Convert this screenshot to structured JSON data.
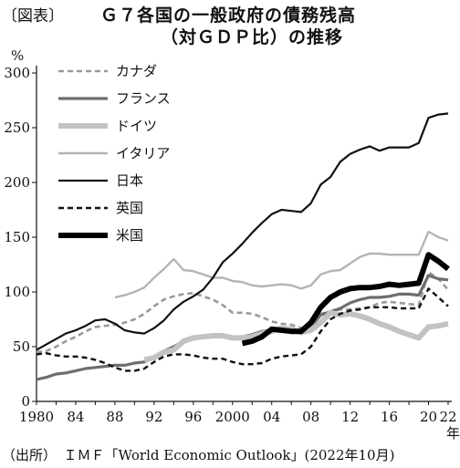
{
  "figure_label": "〔図表〕",
  "title_line1": "Ｇ７各国の一般政府の債務残高",
  "title_line2": "（対ＧＤＰ比）の推移",
  "source": "（出所）　ＩＭＦ「World Economic Outlook」(2022年10月)",
  "chart_data": {
    "type": "line",
    "title": "Ｇ７各国の一般政府の債務残高（対ＧＤＰ比）の推移",
    "ylabel": "%",
    "xlabel": "年",
    "ylim": [
      0,
      300
    ],
    "xlim": [
      1980,
      2022
    ],
    "yticks": [
      0,
      50,
      100,
      150,
      200,
      250,
      300
    ],
    "xtick_values": [
      1980,
      1984,
      1988,
      1992,
      1996,
      2000,
      2004,
      2008,
      2012,
      2016,
      2020,
      2022
    ],
    "xtick_labels": [
      "1980",
      "84",
      "88",
      "92",
      "96",
      "2000",
      "04",
      "08",
      "12",
      "16",
      "20",
      "22"
    ],
    "grid": false,
    "legend_position": "top-left",
    "series": [
      {
        "name": "カナダ",
        "style": "dashed",
        "color": "#9a9a9a",
        "x": [
          1980,
          1981,
          1982,
          1983,
          1984,
          1985,
          1986,
          1987,
          1988,
          1989,
          1990,
          1991,
          1992,
          1993,
          1994,
          1995,
          1996,
          1997,
          1998,
          1999,
          2000,
          2001,
          2002,
          2003,
          2004,
          2005,
          2006,
          2007,
          2008,
          2009,
          2010,
          2011,
          2012,
          2013,
          2014,
          2015,
          2016,
          2017,
          2018,
          2019,
          2020,
          2021,
          2022
        ],
        "y": [
          45,
          46,
          50,
          55,
          59,
          64,
          68,
          69,
          70,
          72,
          75,
          80,
          87,
          93,
          96,
          98,
          99,
          96,
          93,
          88,
          81,
          81,
          80,
          77,
          73,
          71,
          70,
          67,
          68,
          80,
          82,
          84,
          84,
          85,
          86,
          90,
          91,
          90,
          89,
          88,
          118,
          112,
          102
        ]
      },
      {
        "name": "フランス",
        "style": "solid",
        "color": "#6e6e6e",
        "x": [
          1980,
          1981,
          1982,
          1983,
          1984,
          1985,
          1986,
          1987,
          1988,
          1989,
          1990,
          1991,
          1992,
          1993,
          1994,
          1995,
          1996,
          1997,
          1998,
          1999,
          2000,
          2001,
          2002,
          2003,
          2004,
          2005,
          2006,
          2007,
          2008,
          2009,
          2010,
          2011,
          2012,
          2013,
          2014,
          2015,
          2016,
          2017,
          2018,
          2019,
          2020,
          2021,
          2022
        ],
        "y": [
          20,
          22,
          25,
          26,
          28,
          30,
          31,
          32,
          33,
          33,
          35,
          36,
          40,
          46,
          50,
          55,
          58,
          60,
          61,
          60,
          59,
          59,
          61,
          64,
          65,
          67,
          64,
          64,
          68,
          79,
          82,
          85,
          90,
          93,
          95,
          95,
          96,
          98,
          98,
          97,
          115,
          112,
          111
        ]
      },
      {
        "name": "ドイツ",
        "style": "solid",
        "color": "#c2c2c2",
        "x": [
          1991,
          1992,
          1993,
          1994,
          1995,
          1996,
          1997,
          1998,
          1999,
          2000,
          2001,
          2002,
          2003,
          2004,
          2005,
          2006,
          2007,
          2008,
          2009,
          2010,
          2011,
          2012,
          2013,
          2014,
          2015,
          2016,
          2017,
          2018,
          2019,
          2020,
          2021,
          2022
        ],
        "y": [
          38,
          40,
          45,
          47,
          55,
          58,
          59,
          60,
          60,
          58,
          58,
          59,
          62,
          64,
          67,
          66,
          63,
          65,
          72,
          81,
          79,
          80,
          78,
          75,
          71,
          68,
          64,
          61,
          58,
          68,
          69,
          71
        ]
      },
      {
        "name": "イタリア",
        "style": "solid",
        "color": "#b4b4b4",
        "x": [
          1988,
          1989,
          1990,
          1991,
          1992,
          1993,
          1994,
          1995,
          1996,
          1997,
          1998,
          1999,
          2000,
          2001,
          2002,
          2003,
          2004,
          2005,
          2006,
          2007,
          2008,
          2009,
          2010,
          2011,
          2012,
          2013,
          2014,
          2015,
          2016,
          2017,
          2018,
          2019,
          2020,
          2021,
          2022
        ],
        "y": [
          95,
          97,
          100,
          104,
          113,
          121,
          130,
          120,
          119,
          116,
          113,
          113,
          110,
          109,
          106,
          105,
          106,
          107,
          106,
          103,
          106,
          116,
          119,
          120,
          126,
          132,
          135,
          135,
          134,
          134,
          134,
          134,
          155,
          150,
          147
        ]
      },
      {
        "name": "日本",
        "style": "solid",
        "color": "#111111",
        "x": [
          1980,
          1981,
          1982,
          1983,
          1984,
          1985,
          1986,
          1987,
          1988,
          1989,
          1990,
          1991,
          1992,
          1993,
          1994,
          1995,
          1996,
          1997,
          1998,
          1999,
          2000,
          2001,
          2002,
          2003,
          2004,
          2005,
          2006,
          2007,
          2008,
          2009,
          2010,
          2011,
          2012,
          2013,
          2014,
          2015,
          2016,
          2017,
          2018,
          2019,
          2020,
          2021,
          2022
        ],
        "y": [
          47,
          52,
          57,
          62,
          65,
          69,
          74,
          75,
          71,
          65,
          63,
          62,
          67,
          74,
          84,
          91,
          96,
          102,
          113,
          127,
          135,
          144,
          154,
          163,
          171,
          175,
          174,
          173,
          181,
          198,
          205,
          219,
          226,
          230,
          233,
          229,
          232,
          232,
          232,
          236,
          259,
          262,
          263
        ]
      },
      {
        "name": "英国",
        "style": "dashed",
        "color": "#111111",
        "x": [
          1980,
          1981,
          1982,
          1983,
          1984,
          1985,
          1986,
          1987,
          1988,
          1989,
          1990,
          1991,
          1992,
          1993,
          1994,
          1995,
          1996,
          1997,
          1998,
          1999,
          2000,
          2001,
          2002,
          2003,
          2004,
          2005,
          2006,
          2007,
          2008,
          2009,
          2010,
          2011,
          2012,
          2013,
          2014,
          2015,
          2016,
          2017,
          2018,
          2019,
          2020,
          2021,
          2022
        ],
        "y": [
          43,
          44,
          42,
          41,
          41,
          40,
          38,
          35,
          31,
          28,
          28,
          30,
          36,
          41,
          43,
          43,
          42,
          40,
          39,
          39,
          36,
          34,
          34,
          35,
          39,
          41,
          42,
          43,
          50,
          64,
          75,
          80,
          83,
          84,
          86,
          86,
          86,
          85,
          85,
          85,
          103,
          95,
          87
        ]
      },
      {
        "name": "米国",
        "style": "solid",
        "color": "#000000",
        "x": [
          2001,
          2002,
          2003,
          2004,
          2005,
          2006,
          2007,
          2008,
          2009,
          2010,
          2011,
          2012,
          2013,
          2014,
          2015,
          2016,
          2017,
          2018,
          2019,
          2020,
          2021,
          2022
        ],
        "y": [
          53,
          55,
          59,
          66,
          65,
          64,
          64,
          72,
          86,
          95,
          100,
          103,
          104,
          104,
          105,
          107,
          106,
          107,
          108,
          134,
          128,
          121
        ]
      }
    ]
  }
}
